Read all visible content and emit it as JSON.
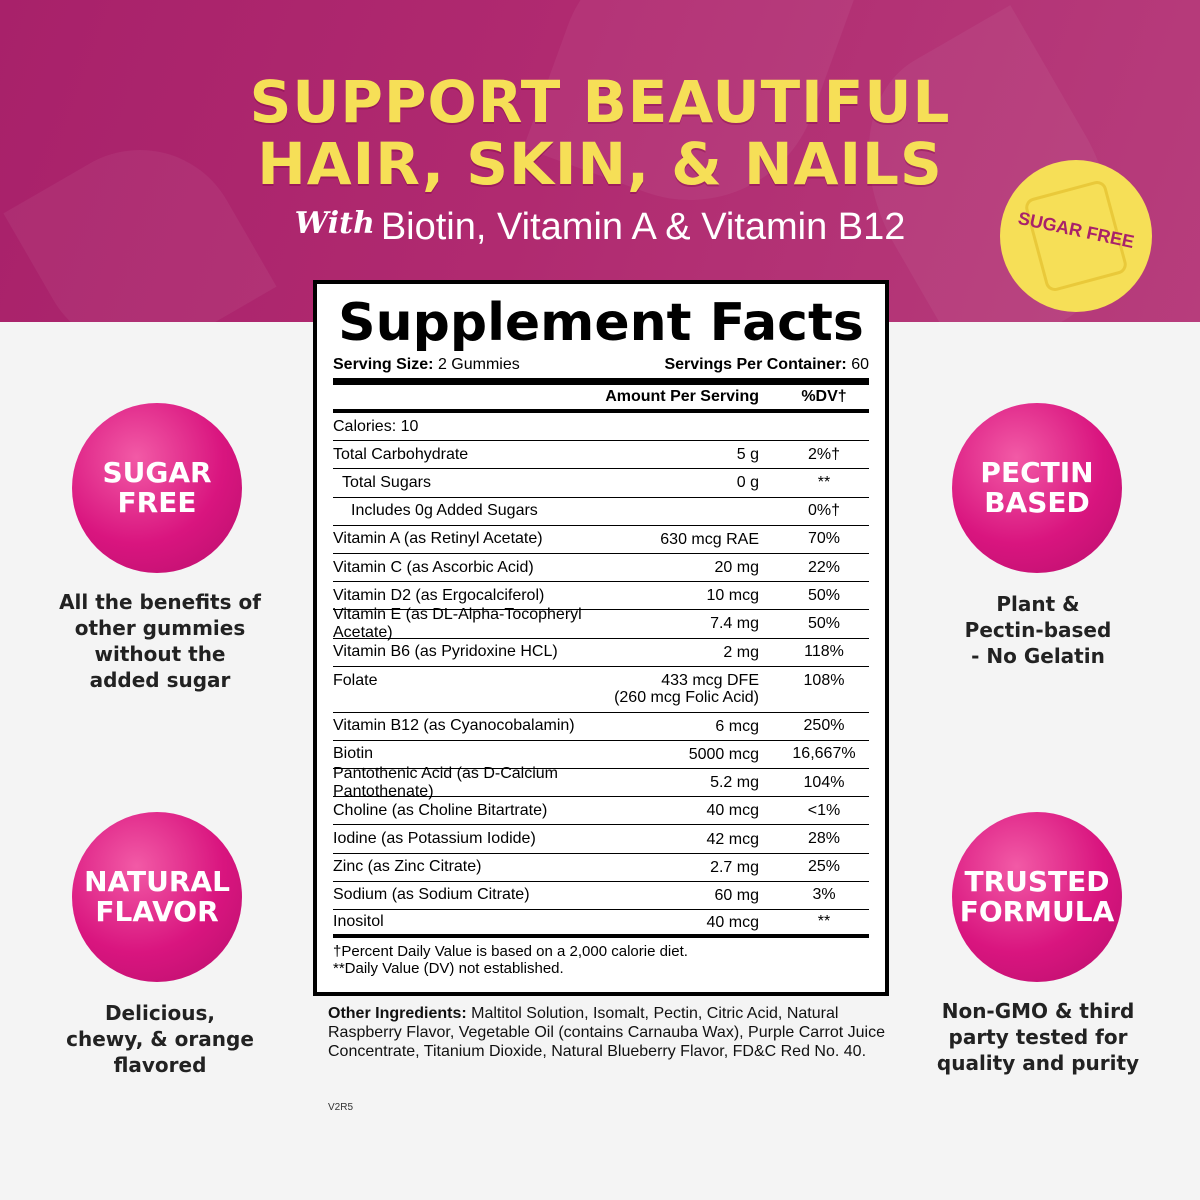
{
  "banner": {
    "headline_line1": "SUPPORT BEAUTIFUL",
    "headline_line2": "HAIR, SKIN, & NAILS",
    "with_word": "With",
    "subline": "Biotin, Vitamin A & Vitamin B12",
    "badge_text": "SUGAR FREE",
    "colors": {
      "background": "#a8216a",
      "headline": "#f6df57",
      "badge": "#f6df57"
    }
  },
  "features": {
    "left_top": {
      "title_line1": "SUGAR",
      "title_line2": "FREE",
      "caption": [
        "All the benefits of",
        "other gummies",
        "without the",
        "added sugar"
      ]
    },
    "left_bottom": {
      "title_line1": "NATURAL",
      "title_line2": "FLAVOR",
      "caption": [
        "Delicious,",
        "chewy, & orange",
        "flavored"
      ]
    },
    "right_top": {
      "title_line1": "PECTIN",
      "title_line2": "BASED",
      "caption": [
        "Plant &",
        "Pectin-based",
        "- No Gelatin"
      ]
    },
    "right_bottom": {
      "title_line1": "TRUSTED",
      "title_line2": "FORMULA",
      "caption": [
        "Non-GMO & third",
        "party tested for",
        "quality and purity"
      ]
    },
    "circle_color": "#d9157f"
  },
  "facts": {
    "title": "Supplement Facts",
    "serving_size_label": "Serving Size:",
    "serving_size_value": "2 Gummies",
    "servings_label": "Servings Per Container:",
    "servings_value": "60",
    "col_amount": "Amount Per Serving",
    "col_dv": "%DV†",
    "rows": [
      {
        "name": "Calories: 10",
        "amount": "",
        "dv": ""
      },
      {
        "name": "Total Carbohydrate",
        "amount": "5 g",
        "dv": "2%†"
      },
      {
        "name": "Total Sugars",
        "amount": "0 g",
        "dv": "**"
      },
      {
        "name": "Includes 0g Added Sugars",
        "amount": "",
        "dv": "0%†"
      },
      {
        "name": "Vitamin A (as Retinyl Acetate)",
        "amount": "630 mcg RAE",
        "dv": "70%"
      },
      {
        "name": "Vitamin C (as Ascorbic Acid)",
        "amount": "20 mg",
        "dv": "22%"
      },
      {
        "name": "Vitamin D2 (as Ergocalciferol)",
        "amount": "10 mcg",
        "dv": "50%"
      },
      {
        "name": "Vitamin E (as DL-Alpha-Tocopheryl Acetate)",
        "amount": "7.4 mg",
        "dv": "50%"
      },
      {
        "name": "Vitamin B6 (as Pyridoxine HCL)",
        "amount": "2 mg",
        "dv": "118%"
      },
      {
        "name": "Folate",
        "amount": "433 mcg DFE",
        "amount2": "(260 mcg Folic Acid)",
        "dv": "108%"
      },
      {
        "name": "Vitamin B12 (as Cyanocobalamin)",
        "amount": "6 mcg",
        "dv": "250%"
      },
      {
        "name": "Biotin",
        "amount": "5000 mcg",
        "dv": "16,667%"
      },
      {
        "name": "Pantothenic Acid (as D-Calcium Pantothenate)",
        "amount": "5.2 mg",
        "dv": "104%"
      },
      {
        "name": "Choline (as Choline Bitartrate)",
        "amount": "40 mcg",
        "dv": "<1%"
      },
      {
        "name": "Iodine (as Potassium Iodide)",
        "amount": "42 mcg",
        "dv": "28%"
      },
      {
        "name": "Zinc (as Zinc Citrate)",
        "amount": "2.7 mg",
        "dv": "25%"
      },
      {
        "name": "Sodium (as Sodium Citrate)",
        "amount": "60 mg",
        "dv": "3%"
      },
      {
        "name": "Inositol",
        "amount": "40 mcg",
        "dv": "**"
      }
    ],
    "footnote1": "†Percent Daily Value is based on a 2,000 calorie diet.",
    "footnote2": "**Daily Value (DV) not established."
  },
  "other_ingredients": {
    "label": "Other Ingredients:",
    "text": "Maltitol Solution, Isomalt, Pectin, Citric Acid, Natural Raspberry Flavor, Vegetable Oil (contains Carnauba Wax), Purple Carrot Juice Concentrate, Titanium Dioxide, Natural Blueberry Flavor, FD&C Red No. 40."
  },
  "version": "V2R5"
}
